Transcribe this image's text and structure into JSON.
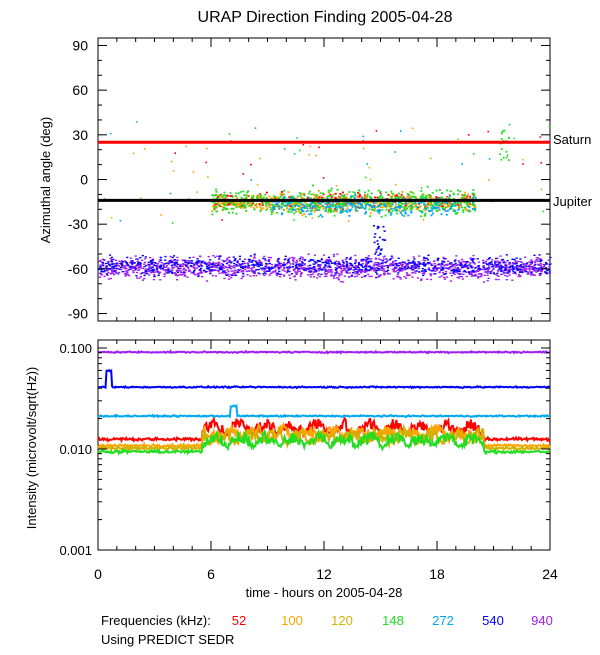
{
  "chart_data": [
    {
      "type": "scatter",
      "title": "URAP Direction Finding  2005-04-28",
      "ylabel": "Azimuthal angle (deg)",
      "xlim": [
        0,
        24
      ],
      "ylim": [
        -95,
        95
      ],
      "yticks": [
        -90,
        -60,
        -30,
        0,
        30,
        60,
        90
      ],
      "reference_lines": [
        {
          "name": "Saturn",
          "y": 25,
          "color": "#ff0000"
        },
        {
          "name": "Jupiter",
          "y": -14,
          "color": "#000000"
        }
      ],
      "series": [
        {
          "name": "52",
          "x_range": [
            0,
            24
          ],
          "typical_range": [
            -20,
            -8
          ],
          "active_hours": [
            6,
            20
          ],
          "color": "#ff0000"
        },
        {
          "name": "100",
          "x_range": [
            0,
            24
          ],
          "typical_range": [
            -22,
            -8
          ],
          "active_hours": [
            6,
            20
          ],
          "color": "#ffa500"
        },
        {
          "name": "120",
          "x_range": [
            0,
            24
          ],
          "typical_range": [
            -22,
            -8
          ],
          "active_hours": [
            6,
            20
          ],
          "color": "#d4b000"
        },
        {
          "name": "148",
          "x_range": [
            0,
            24
          ],
          "typical_range": [
            -24,
            -5
          ],
          "active_hours": [
            6,
            20
          ],
          "color": "#22dd22"
        },
        {
          "name": "272",
          "x_range": [
            0,
            24
          ],
          "typical_range": [
            -24,
            -10
          ],
          "active_hours": [
            9,
            20
          ],
          "color": "#00a8f0"
        },
        {
          "name": "540",
          "x_range": [
            0,
            24
          ],
          "typical_range": [
            -65,
            -50
          ],
          "active_hours": [
            0,
            24
          ],
          "color": "#0000ff"
        },
        {
          "name": "940",
          "x_range": [
            0,
            24
          ],
          "typical_range": [
            -68,
            -50
          ],
          "active_hours": [
            0,
            24
          ],
          "color": "#a020f0"
        }
      ]
    },
    {
      "type": "line",
      "ylabel": "Intensity (microvolt/sqrt(Hz))",
      "xlabel": "time - hours on 2005-04-28",
      "xlim": [
        0,
        24
      ],
      "xticks": [
        0,
        6,
        12,
        18,
        24
      ],
      "ylim": [
        0.001,
        0.12
      ],
      "yscale": "log",
      "yticks": [
        0.001,
        0.01,
        0.1
      ],
      "ytick_labels": [
        "0.001",
        "0.010",
        "0.100"
      ],
      "series": [
        {
          "name": "52",
          "baseline": 0.0125,
          "color": "#ff0000"
        },
        {
          "name": "100",
          "baseline": 0.0108,
          "color": "#ffa500"
        },
        {
          "name": "120",
          "baseline": 0.0102,
          "color": "#d4b000"
        },
        {
          "name": "148",
          "baseline": 0.0094,
          "color": "#22dd22"
        },
        {
          "name": "272",
          "baseline": 0.0212,
          "color": "#00a8f0"
        },
        {
          "name": "540",
          "baseline": 0.041,
          "color": "#0000ff"
        },
        {
          "name": "940",
          "baseline": 0.091,
          "color": "#a020f0"
        }
      ]
    }
  ],
  "footer": {
    "frequencies_label": "Frequencies (kHz):",
    "frequencies": [
      "52",
      "100",
      "120",
      "148",
      "272",
      "540",
      "940"
    ],
    "source_note": "Using PREDICT SEDR"
  }
}
